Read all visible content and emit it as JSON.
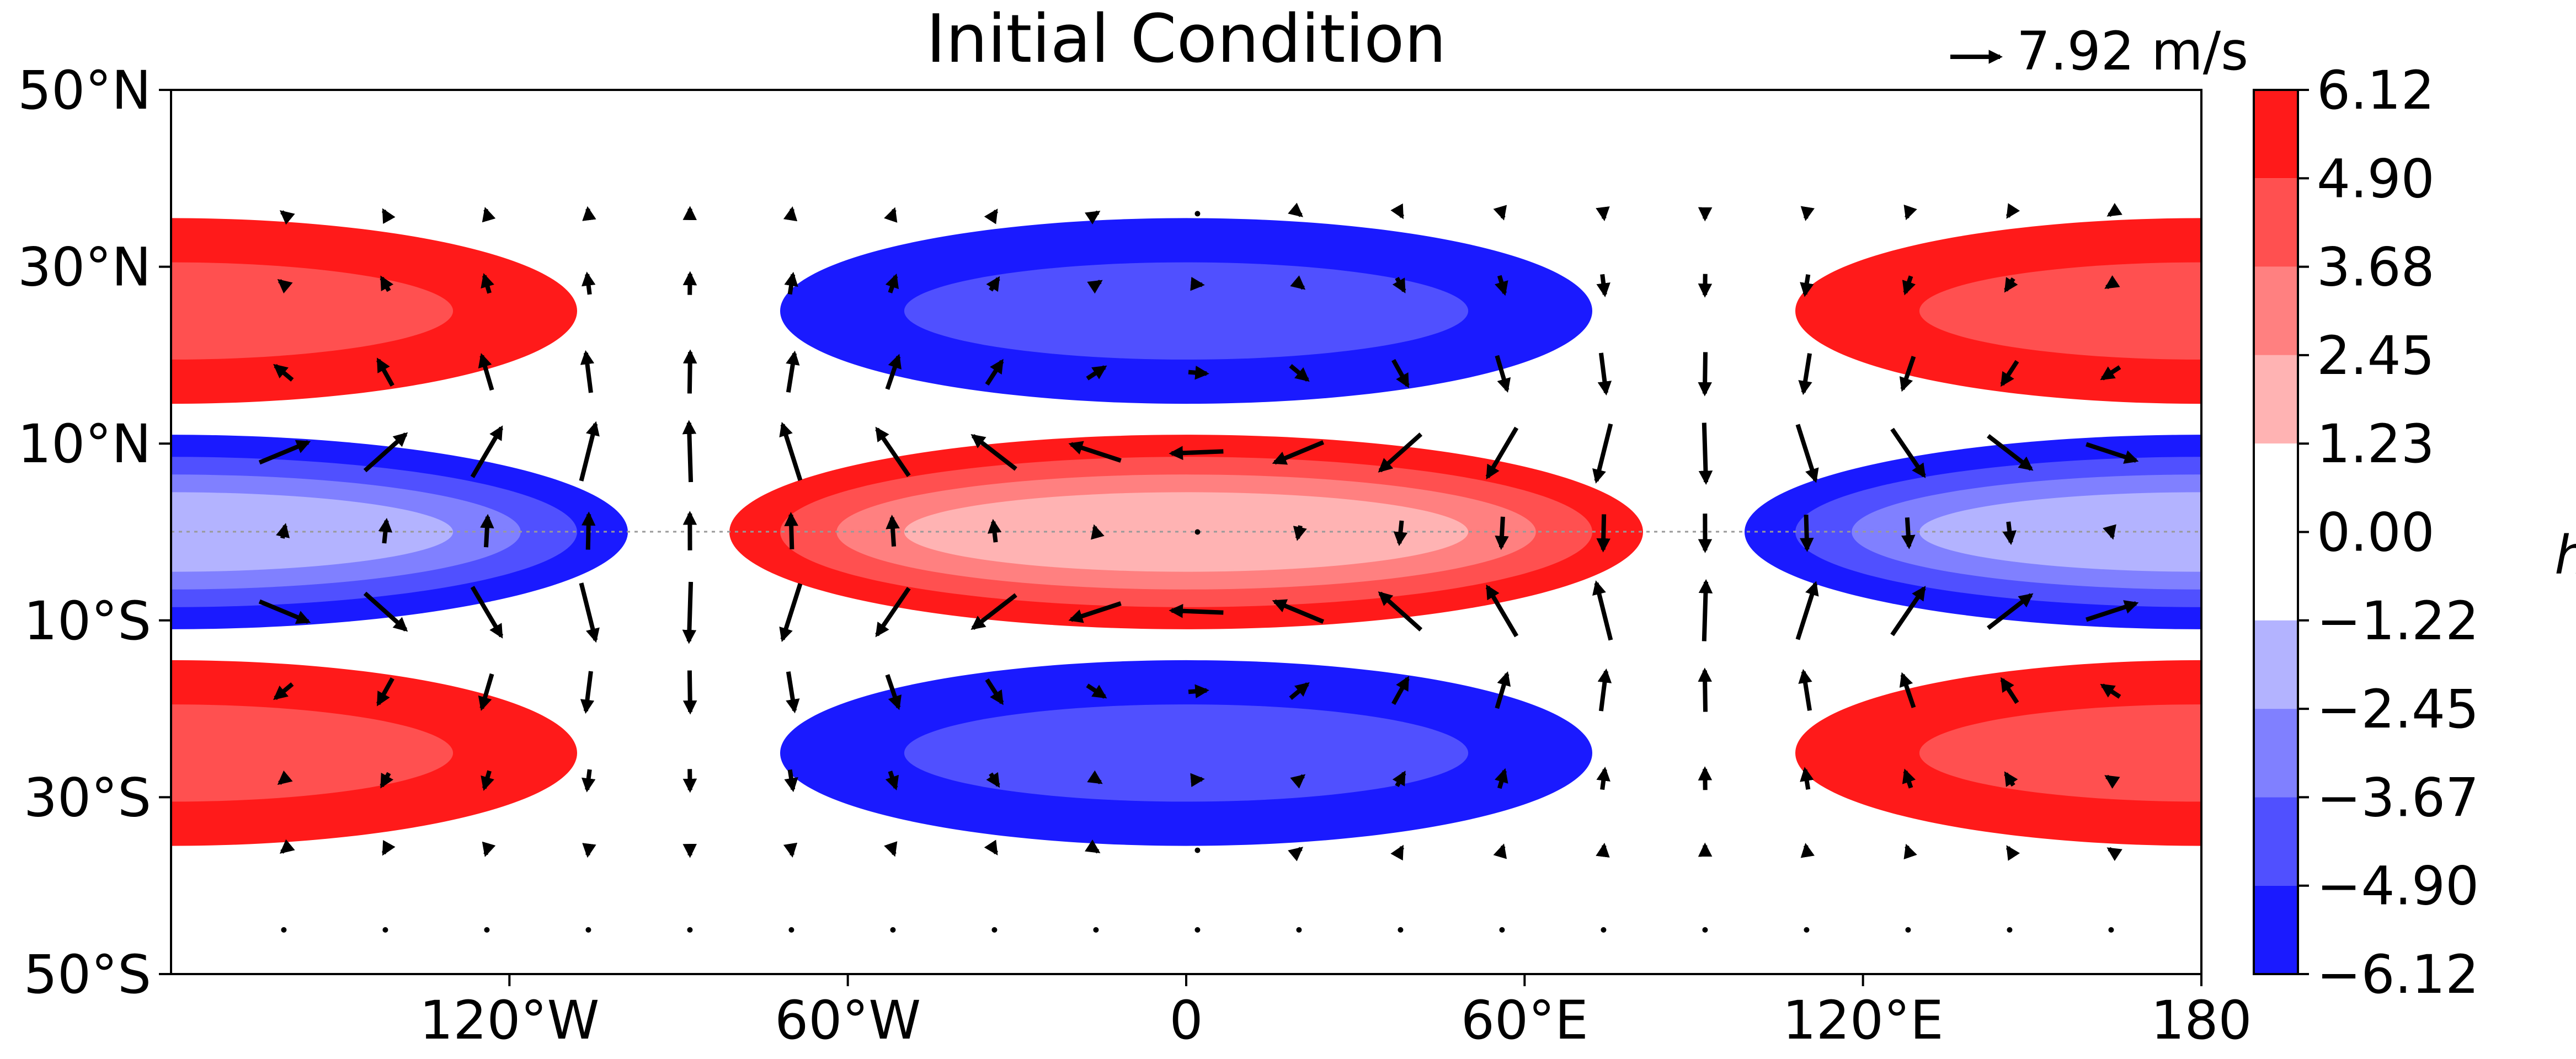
{
  "chart_data": {
    "type": "heatmap",
    "title": "Initial Condition",
    "field": "contour map of pressure anomaly with wind vectors",
    "xlim": [
      -180,
      180
    ],
    "ylim": [
      -50,
      50
    ],
    "x_ticks": [
      {
        "value": -120,
        "label": "120°W"
      },
      {
        "value": -60,
        "label": "60°W"
      },
      {
        "value": 0,
        "label": "0"
      },
      {
        "value": 60,
        "label": "60°E"
      },
      {
        "value": 120,
        "label": "120°E"
      },
      {
        "value": 180,
        "label": "180"
      }
    ],
    "y_ticks": [
      {
        "value": 50,
        "label": "50°N"
      },
      {
        "value": 30,
        "label": "30°N"
      },
      {
        "value": 10,
        "label": "10°N"
      },
      {
        "value": -10,
        "label": "10°S"
      },
      {
        "value": -30,
        "label": "30°S"
      },
      {
        "value": -50,
        "label": "50°S"
      }
    ],
    "colorbar": {
      "unit": "hPa",
      "tick_labels": [
        "6.12",
        "4.90",
        "3.68",
        "2.45",
        "1.23",
        "0.00",
        "−1.22",
        "−2.45",
        "−3.67",
        "−4.90",
        "−6.12"
      ],
      "bins": [
        {
          "range": [
            4.9,
            6.12
          ],
          "color": "#ff1a1a"
        },
        {
          "range": [
            3.68,
            4.9
          ],
          "color": "#ff5050"
        },
        {
          "range": [
            2.45,
            3.68
          ],
          "color": "#ff8080"
        },
        {
          "range": [
            1.23,
            2.45
          ],
          "color": "#ffb3b3"
        },
        {
          "range": [
            -1.22,
            1.23
          ],
          "color": "#ffffff"
        },
        {
          "range": [
            -2.45,
            -1.22
          ],
          "color": "#b3b3ff"
        },
        {
          "range": [
            -3.67,
            -2.45
          ],
          "color": "#8080ff"
        },
        {
          "range": [
            -4.9,
            -3.67
          ],
          "color": "#5050ff"
        },
        {
          "range": [
            -6.12,
            -4.9
          ],
          "color": "#1a1aff"
        }
      ]
    },
    "reference_vector": {
      "label": "7.92 m/s",
      "value": 7.92
    },
    "equator_line": {
      "latitude": 0,
      "style": "dotted"
    },
    "contour_regions": [
      {
        "lon_center": 0,
        "lat_center": 0,
        "level": 4,
        "lon_halfwidth": 81,
        "lat_halfwidth": 11
      },
      {
        "lon_center": 0,
        "lat_center": 0,
        "level": 3,
        "lon_halfwidth": 72,
        "lat_halfwidth": 8.5
      },
      {
        "lon_center": 0,
        "lat_center": 0,
        "level": 2,
        "lon_halfwidth": 62,
        "lat_halfwidth": 6.5
      },
      {
        "lon_center": 0,
        "lat_center": 0,
        "level": 1,
        "lon_halfwidth": 50,
        "lat_halfwidth": 4.5
      },
      {
        "lon_center": -180,
        "lat_center": 0,
        "level": -4,
        "lon_halfwidth": 81,
        "lat_halfwidth": 11
      },
      {
        "lon_center": -180,
        "lat_center": 0,
        "level": -3,
        "lon_halfwidth": 72,
        "lat_halfwidth": 8.5
      },
      {
        "lon_center": -180,
        "lat_center": 0,
        "level": -2,
        "lon_halfwidth": 62,
        "lat_halfwidth": 6.5
      },
      {
        "lon_center": -180,
        "lat_center": 0,
        "level": -1,
        "lon_halfwidth": 50,
        "lat_halfwidth": 4.5
      },
      {
        "lon_center": 180,
        "lat_center": 0,
        "level": -4,
        "lon_halfwidth": 81,
        "lat_halfwidth": 11
      },
      {
        "lon_center": 180,
        "lat_center": 0,
        "level": -3,
        "lon_halfwidth": 72,
        "lat_halfwidth": 8.5
      },
      {
        "lon_center": 180,
        "lat_center": 0,
        "level": -2,
        "lon_halfwidth": 62,
        "lat_halfwidth": 6.5
      },
      {
        "lon_center": 180,
        "lat_center": 0,
        "level": -1,
        "lon_halfwidth": 50,
        "lat_halfwidth": 4.5
      },
      {
        "lon_center": 0,
        "lat_center": 25,
        "level": -4,
        "lon_halfwidth": 72,
        "lat_halfwidth": 10.5
      },
      {
        "lon_center": 0,
        "lat_center": 25,
        "level": -3,
        "lon_halfwidth": 50,
        "lat_halfwidth": 5.5
      },
      {
        "lon_center": 0,
        "lat_center": -25,
        "level": -4,
        "lon_halfwidth": 72,
        "lat_halfwidth": 10.5
      },
      {
        "lon_center": 0,
        "lat_center": -25,
        "level": -3,
        "lon_halfwidth": 50,
        "lat_halfwidth": 5.5
      },
      {
        "lon_center": 180,
        "lat_center": 25,
        "level": 4,
        "lon_halfwidth": 72,
        "lat_halfwidth": 10.5
      },
      {
        "lon_center": 180,
        "lat_center": 25,
        "level": 3,
        "lon_halfwidth": 50,
        "lat_halfwidth": 5.5
      },
      {
        "lon_center": -180,
        "lat_center": 25,
        "level": 4,
        "lon_halfwidth": 72,
        "lat_halfwidth": 10.5
      },
      {
        "lon_center": -180,
        "lat_center": 25,
        "level": 3,
        "lon_halfwidth": 50,
        "lat_halfwidth": 5.5
      },
      {
        "lon_center": 180,
        "lat_center": -25,
        "level": 4,
        "lon_halfwidth": 72,
        "lat_halfwidth": 10.5
      },
      {
        "lon_center": 180,
        "lat_center": -25,
        "level": 3,
        "lon_halfwidth": 50,
        "lat_halfwidth": 5.5
      },
      {
        "lon_center": -180,
        "lat_center": -25,
        "level": 4,
        "lon_halfwidth": 72,
        "lat_halfwidth": 10.5
      },
      {
        "lon_center": -180,
        "lat_center": -25,
        "level": 3,
        "lon_halfwidth": 50,
        "lat_halfwidth": 5.5
      }
    ],
    "wind_vectors": {
      "lon_start": -160,
      "lon_step": 18,
      "lon_count": 19,
      "latitudes": [
        36,
        28,
        18,
        9,
        0,
        -9,
        -18,
        -28,
        -36,
        -45
      ],
      "u_scale": 6.9,
      "v_scale": 7.9
    }
  }
}
